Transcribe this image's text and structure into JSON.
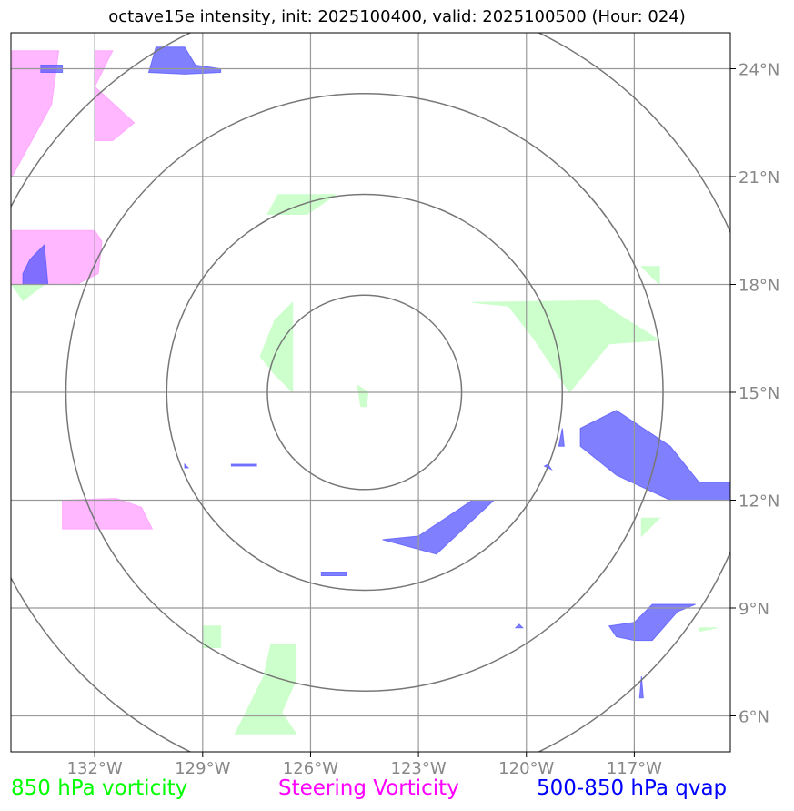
{
  "title": "octave15e intensity, init: 2025100400, valid: 2025100500 (Hour: 024)",
  "legend": {
    "vorticity_850": {
      "label": "850 hPa vorticity",
      "color": "#00ff00"
    },
    "steering": {
      "label": "Steering Vorticity",
      "color": "#ff00ff"
    },
    "qvap": {
      "label": "500-850 hPa qvap",
      "color": "#0000ff"
    }
  },
  "map": {
    "lon_range": [
      -134.33,
      -114.33
    ],
    "lat_range": [
      5.0,
      25.0
    ],
    "center": {
      "lon": -124.5,
      "lat": 15.0
    },
    "lon_ticks": [
      {
        "value": -132,
        "label": "132°W"
      },
      {
        "value": -129,
        "label": "129°W"
      },
      {
        "value": -126,
        "label": "126°W"
      },
      {
        "value": -123,
        "label": "123°W"
      },
      {
        "value": -120,
        "label": "120°W"
      },
      {
        "value": -117,
        "label": "117°W"
      }
    ],
    "lat_ticks": [
      {
        "value": 24,
        "label": "24°N"
      },
      {
        "value": 21,
        "label": "21°N"
      },
      {
        "value": 18,
        "label": "18°N"
      },
      {
        "value": 15,
        "label": "15°N"
      },
      {
        "value": 12,
        "label": "12°N"
      },
      {
        "value": 9,
        "label": "9°N"
      },
      {
        "value": 6,
        "label": "6°N"
      }
    ],
    "range_rings_deg": [
      2.7,
      5.5,
      8.3,
      11.1
    ],
    "colors": {
      "grid": "#999999",
      "ring": "#777777",
      "tick_label": "#888888",
      "vort": "#ccffcc",
      "steer": "#ff99ff",
      "qvap": "#5555ff"
    }
  },
  "fields": {
    "vorticity_850": [
      [
        [
          -126.9,
          20.5
        ],
        [
          -125.3,
          20.5
        ],
        [
          -126.1,
          19.95
        ],
        [
          -127.2,
          19.95
        ]
      ],
      [
        [
          -134.3,
          18.0
        ],
        [
          -133.4,
          18.0
        ],
        [
          -134.0,
          17.55
        ]
      ],
      [
        [
          -126.5,
          17.5
        ],
        [
          -126.5,
          15.0
        ],
        [
          -127.0,
          15.5
        ],
        [
          -127.4,
          16.0
        ],
        [
          -127.0,
          17.0
        ]
      ],
      [
        [
          -124.7,
          15.2
        ],
        [
          -124.4,
          15.0
        ],
        [
          -124.45,
          14.6
        ],
        [
          -124.6,
          14.6
        ]
      ],
      [
        [
          -121.5,
          17.5
        ],
        [
          -118.0,
          17.55
        ],
        [
          -117.5,
          17.2
        ],
        [
          -116.3,
          16.45
        ],
        [
          -117.7,
          16.35
        ],
        [
          -118.8,
          15.0
        ],
        [
          -119.8,
          16.5
        ],
        [
          -120.5,
          17.4
        ]
      ],
      [
        [
          -116.8,
          18.5
        ],
        [
          -116.3,
          18.0
        ],
        [
          -116.3,
          18.5
        ]
      ],
      [
        [
          -116.8,
          11.5
        ],
        [
          -116.3,
          11.5
        ],
        [
          -116.8,
          11.0
        ]
      ],
      [
        [
          -115.2,
          8.45
        ],
        [
          -114.7,
          8.45
        ],
        [
          -115.2,
          8.35
        ]
      ],
      [
        [
          -129.0,
          8.5
        ],
        [
          -128.5,
          8.5
        ],
        [
          -128.5,
          7.9
        ],
        [
          -129.0,
          7.9
        ]
      ],
      [
        [
          -127.1,
          8.0
        ],
        [
          -126.4,
          8.0
        ],
        [
          -126.4,
          7.0
        ],
        [
          -126.8,
          6.1
        ],
        [
          -126.4,
          5.5
        ],
        [
          -128.1,
          5.5
        ],
        [
          -127.6,
          6.5
        ],
        [
          -127.3,
          7.1
        ]
      ]
    ],
    "steering": [
      [
        [
          -134.3,
          24.5
        ],
        [
          -133.0,
          24.5
        ],
        [
          -133.2,
          23.0
        ],
        [
          -134.3,
          21.0
        ]
      ],
      [
        [
          -132.0,
          24.5
        ],
        [
          -131.5,
          24.5
        ],
        [
          -132.0,
          23.5
        ],
        [
          -130.9,
          22.5
        ],
        [
          -131.5,
          22.0
        ],
        [
          -132.0,
          22.0
        ]
      ],
      [
        [
          -134.3,
          19.5
        ],
        [
          -132.0,
          19.5
        ],
        [
          -131.8,
          19.2
        ],
        [
          -131.9,
          18.3
        ],
        [
          -132.5,
          18.0
        ],
        [
          -134.3,
          18.0
        ]
      ],
      [
        [
          -132.9,
          12.0
        ],
        [
          -131.4,
          12.05
        ],
        [
          -130.7,
          11.8
        ],
        [
          -130.4,
          11.2
        ],
        [
          -132.9,
          11.2
        ]
      ]
    ],
    "qvap": [
      [
        [
          -130.3,
          24.6
        ],
        [
          -129.5,
          24.6
        ],
        [
          -129.2,
          24.1
        ],
        [
          -128.5,
          24.0
        ],
        [
          -128.5,
          23.9
        ],
        [
          -129.5,
          23.85
        ],
        [
          -130.5,
          23.9
        ]
      ],
      [
        [
          -133.5,
          24.1
        ],
        [
          -132.9,
          24.1
        ],
        [
          -132.9,
          23.9
        ],
        [
          -133.5,
          23.9
        ]
      ],
      [
        [
          -134.0,
          18.0
        ],
        [
          -133.3,
          18.0
        ],
        [
          -133.4,
          19.1
        ],
        [
          -133.8,
          18.7
        ],
        [
          -134.0,
          18.3
        ]
      ],
      [
        [
          -123.0,
          11.0
        ],
        [
          -121.5,
          12.0
        ],
        [
          -120.9,
          12.0
        ],
        [
          -122.5,
          10.5
        ],
        [
          -124.0,
          10.9
        ]
      ],
      [
        [
          -125.7,
          10.0
        ],
        [
          -125.0,
          10.0
        ],
        [
          -125.0,
          9.9
        ],
        [
          -125.7,
          9.9
        ]
      ],
      [
        [
          -117.5,
          14.5
        ],
        [
          -116.0,
          13.5
        ],
        [
          -115.2,
          12.5
        ],
        [
          -114.3,
          12.5
        ],
        [
          -114.3,
          12.0
        ],
        [
          -116.0,
          12.0
        ],
        [
          -117.5,
          12.7
        ],
        [
          -118.5,
          13.5
        ],
        [
          -118.5,
          14.0
        ]
      ],
      [
        [
          -119.0,
          14.0
        ],
        [
          -118.95,
          13.5
        ],
        [
          -119.1,
          13.5
        ]
      ],
      [
        [
          -116.5,
          9.1
        ],
        [
          -115.3,
          9.1
        ],
        [
          -115.8,
          8.9
        ],
        [
          -116.5,
          8.1
        ],
        [
          -117.0,
          8.1
        ],
        [
          -117.5,
          8.2
        ],
        [
          -117.7,
          8.5
        ],
        [
          -117.0,
          8.6
        ]
      ],
      [
        [
          -119.5,
          12.95
        ],
        [
          -119.3,
          12.85
        ],
        [
          -119.4,
          13.0
        ]
      ],
      [
        [
          -120.2,
          8.55
        ],
        [
          -120.1,
          8.45
        ],
        [
          -120.3,
          8.45
        ]
      ],
      [
        [
          -128.2,
          13.0
        ],
        [
          -127.5,
          13.0
        ],
        [
          -127.5,
          12.95
        ],
        [
          -128.2,
          12.95
        ]
      ],
      [
        [
          -129.5,
          13.0
        ],
        [
          -129.4,
          12.9
        ],
        [
          -129.5,
          12.9
        ]
      ],
      [
        [
          -116.8,
          7.1
        ],
        [
          -116.75,
          6.5
        ],
        [
          -116.85,
          6.5
        ]
      ]
    ]
  }
}
